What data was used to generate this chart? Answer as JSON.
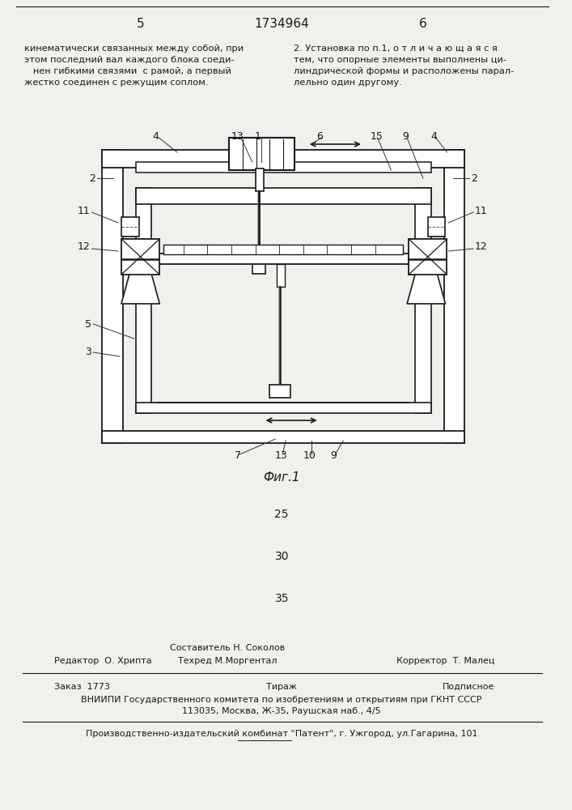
{
  "bg_color": "#f0f0ec",
  "page_num_left": "5",
  "patent_num": "1734964",
  "page_num_right": "6",
  "text_left": "кинематически связанных между собой, при\nэтом последний вал каждого блока соеди-\n   нен гибкими связями  с рамой, а первый\nжестко соединен с режущим соплом.",
  "text_right": "2. Установка по п.1, о т л и ч а ю щ а я с я\nтем, что опорные элементы выполнены ци-\nлиндрической формы и расположены парал-\nлельно один другому.",
  "fig_caption": "Фиг.1",
  "line_numbers": [
    "25",
    "30",
    "35"
  ],
  "footer_top_left": "Редактор  О. Хрипта",
  "footer_top_center1": "Составитель Н. Соколов",
  "footer_top_center2": "Техред М.Моргентал",
  "footer_top_right": "Корректор  Т. Малец",
  "footer_mid_left": "Заказ  1773",
  "footer_mid_center": "Тираж",
  "footer_mid_right": "Подписное",
  "footer_mid2": "ВНИИПИ Государственного комитета по изобретениям и открытиям при ГКНТ СССР",
  "footer_mid3": "113035, Москва, Ж-35, Раушская наб., 4/5",
  "footer_bottom": "Производственно-издательский комбинат \"Патент\", г. Ужгород, ул.Гагарина, 101",
  "text_color": "#1a1a1a",
  "line_color": "#1a1a1a"
}
